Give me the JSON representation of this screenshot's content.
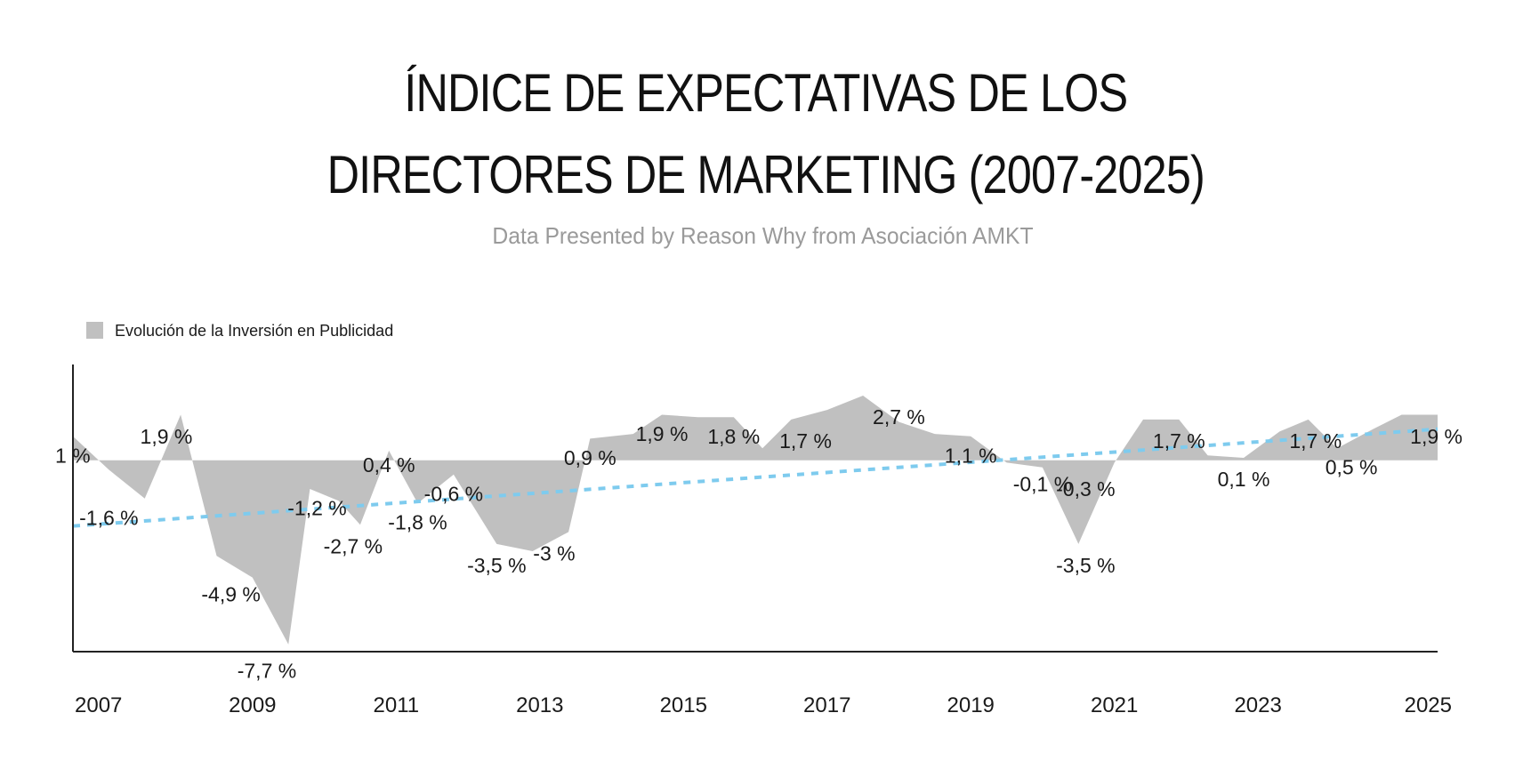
{
  "title_line1": "ÍNDICE DE EXPECTATIVAS DE LOS",
  "title_line2": "DIRECTORES DE MARKETING (2007-2025)",
  "subtitle": "Data Presented by Reason Why from Asociación AMKT",
  "chart_data": {
    "type": "area",
    "title": "ÍNDICE DE EXPECTATIVAS DE LOS DIRECTORES DE MARKETING (2007-2025)",
    "subtitle": "Data Presented by Reason Why from Asociación AMKT",
    "xlabel": "",
    "ylabel": "",
    "x_ticks": [
      "2007",
      "2009",
      "2011",
      "2013",
      "2015",
      "2017",
      "2019",
      "2021",
      "2023",
      "2025"
    ],
    "xlim": [
      2006.5,
      2025.5
    ],
    "ylim": [
      -8.0,
      4.0
    ],
    "grid": false,
    "legend": {
      "position": "top-left",
      "entries": [
        "Evolución de la Inversión en Publicidad"
      ]
    },
    "colors": {
      "area": "#c0c0c0",
      "trend": "#7ecbee",
      "axis": "#222222"
    },
    "series": [
      {
        "name": "Evolución de la Inversión en Publicidad",
        "x": [
          2006.5,
          2007.0,
          2007.5,
          2008.0,
          2008.5,
          2009.0,
          2009.5,
          2009.8,
          2010.2,
          2010.5,
          2010.9,
          2011.3,
          2011.8,
          2012.4,
          2012.9,
          2013.4,
          2013.7,
          2014.3,
          2014.7,
          2015.2,
          2015.7,
          2016.1,
          2016.5,
          2017.0,
          2017.5,
          2018.0,
          2018.5,
          2019.0,
          2019.5,
          2020.0,
          2020.5,
          2021.0,
          2021.4,
          2021.9,
          2022.3,
          2022.8,
          2023.3,
          2023.7,
          2024.1,
          2024.6,
          2025.0,
          2025.5
        ],
        "y": [
          1.0,
          -0.4,
          -1.6,
          1.9,
          -4.0,
          -4.9,
          -7.7,
          -1.2,
          -1.7,
          -2.7,
          0.4,
          -1.8,
          -0.6,
          -3.5,
          -3.8,
          -3.0,
          0.9,
          1.1,
          1.9,
          1.8,
          1.8,
          0.5,
          1.7,
          2.1,
          2.7,
          1.6,
          1.1,
          1.0,
          -0.1,
          -0.3,
          -3.5,
          -0.1,
          1.7,
          1.7,
          0.2,
          0.1,
          1.2,
          1.7,
          0.5,
          1.3,
          1.9,
          1.9
        ]
      }
    ],
    "trend_line": {
      "x": [
        2006.5,
        2025.5
      ],
      "y": [
        -2.75,
        1.3
      ]
    },
    "data_labels": [
      {
        "text": "1 %",
        "x": 2006.5,
        "y": 0.2
      },
      {
        "text": "-1,6 %",
        "x": 2007.0,
        "y": -2.4
      },
      {
        "text": "1,9 %",
        "x": 2007.8,
        "y": 1.0
      },
      {
        "text": "-4,9 %",
        "x": 2008.7,
        "y": -5.6
      },
      {
        "text": "-7,7 %",
        "x": 2009.2,
        "y": -8.8
      },
      {
        "text": "-1,2 %",
        "x": 2009.9,
        "y": -2.0
      },
      {
        "text": "-2,7 %",
        "x": 2010.4,
        "y": -3.6
      },
      {
        "text": "0,4 %",
        "x": 2010.9,
        "y": -0.2
      },
      {
        "text": "-1,8 %",
        "x": 2011.3,
        "y": -2.6
      },
      {
        "text": "-0,6 %",
        "x": 2011.8,
        "y": -1.4
      },
      {
        "text": "-3,5 %",
        "x": 2012.4,
        "y": -4.4
      },
      {
        "text": "-3 %",
        "x": 2013.2,
        "y": -3.9
      },
      {
        "text": "0,9 %",
        "x": 2013.7,
        "y": 0.1
      },
      {
        "text": "1,9 %",
        "x": 2014.7,
        "y": 1.1
      },
      {
        "text": "1,8 %",
        "x": 2015.7,
        "y": 1.0
      },
      {
        "text": "1,7 %",
        "x": 2016.7,
        "y": 0.8
      },
      {
        "text": "2,7 %",
        "x": 2018.0,
        "y": 1.8
      },
      {
        "text": "1,1 %",
        "x": 2019.0,
        "y": 0.2
      },
      {
        "text": "-0,1 %",
        "x": 2020.0,
        "y": -1.0
      },
      {
        "text": "-0,3 %",
        "x": 2020.6,
        "y": -1.2
      },
      {
        "text": "-3,5 %",
        "x": 2020.6,
        "y": -4.4
      },
      {
        "text": "1,7 %",
        "x": 2021.9,
        "y": 0.8
      },
      {
        "text": "0,1 %",
        "x": 2022.8,
        "y": -0.8
      },
      {
        "text": "1,7 %",
        "x": 2023.8,
        "y": 0.8
      },
      {
        "text": "0,5 %",
        "x": 2024.3,
        "y": -0.3
      },
      {
        "text": "1,9 %",
        "x": 2025.4,
        "y": 1.0
      }
    ]
  }
}
